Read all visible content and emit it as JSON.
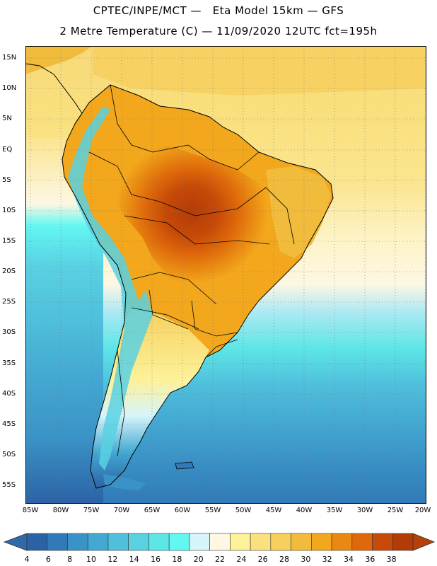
{
  "header": {
    "line1": "CPTEC/INPE/MCT —   Eta Model 15km — GFS",
    "line2": "2 Metre Temperature (C) — 11/09/2020 12UTC fct=195h"
  },
  "map": {
    "region": "South America",
    "lat_labels": [
      "15N",
      "10N",
      "5N",
      "EQ",
      "5S",
      "10S",
      "15S",
      "20S",
      "25S",
      "30S",
      "35S",
      "40S",
      "45S",
      "50S",
      "55S"
    ],
    "lon_labels": [
      "85W",
      "80W",
      "75W",
      "70W",
      "65W",
      "60W",
      "55W",
      "50W",
      "45W",
      "40W",
      "35W",
      "30W",
      "25W",
      "20W"
    ],
    "extent": {
      "west": -86,
      "east": -20,
      "south": -58,
      "north": 17
    }
  },
  "legend": {
    "labels": [
      "4",
      "6",
      "8",
      "10",
      "12",
      "14",
      "16",
      "18",
      "20",
      "22",
      "24",
      "26",
      "28",
      "30",
      "32",
      "34",
      "36",
      "38"
    ],
    "colors": [
      "#2b62a6",
      "#3179b7",
      "#3a93c6",
      "#44a9d2",
      "#4fbfdc",
      "#59d1e2",
      "#5de6e6",
      "#63f7f2",
      "#d6f4fa",
      "#fdf7e3",
      "#fdf29a",
      "#f9e27e",
      "#f6cf5c",
      "#f1bc3c",
      "#f2a71c",
      "#e98812",
      "#de680a",
      "#c64a08",
      "#b23b08"
    ],
    "left_arrow_color": "#2e6aa8",
    "right_arrow_color": "#b5400a"
  }
}
